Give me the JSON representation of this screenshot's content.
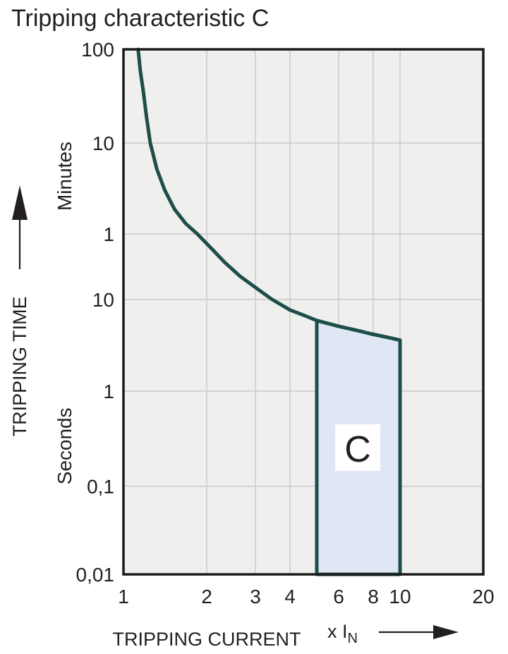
{
  "page": {
    "background": "#ffffff"
  },
  "colors": {
    "curve": "#1e4e49",
    "region_fill": "#dfe7f4",
    "region_border": "#1e4e49",
    "plot_background": "#efefee",
    "gridline": "#c9c9c9",
    "plot_border": "#1a1a1a",
    "text": "#231f20",
    "region_label_box": "#ffffff"
  },
  "chart_data": {
    "type": "line",
    "title": "Tripping characteristic C",
    "x_axis": {
      "title": "TRIPPING CURRENT",
      "unit_label": "x I",
      "unit_sub": "N",
      "scale": "log",
      "range": [
        1,
        20
      ],
      "ticks": [
        {
          "value": 1,
          "label": "1"
        },
        {
          "value": 2,
          "label": "2"
        },
        {
          "value": 3,
          "label": "3"
        },
        {
          "value": 4,
          "label": "4"
        },
        {
          "value": 6,
          "label": "6"
        },
        {
          "value": 8,
          "label": "8"
        },
        {
          "value": 10,
          "label": "10"
        },
        {
          "value": 20,
          "label": "20"
        }
      ]
    },
    "y_axis": {
      "title": "TRIPPING TIME",
      "scale": "log",
      "sections": [
        {
          "label": "Minutes"
        },
        {
          "label": "Seconds"
        }
      ],
      "ticks": [
        {
          "seconds": 6000,
          "label": "100",
          "unit": "minutes"
        },
        {
          "seconds": 600,
          "label": "10",
          "unit": "minutes"
        },
        {
          "seconds": 60,
          "label": "1",
          "unit": "minutes"
        },
        {
          "seconds": 10,
          "label": "10",
          "unit": "seconds"
        },
        {
          "seconds": 1,
          "label": "1",
          "unit": "seconds"
        },
        {
          "seconds": 0.1,
          "label": "0,1",
          "unit": "seconds"
        },
        {
          "seconds": 0.01,
          "label": "0,01",
          "unit": "seconds"
        }
      ]
    },
    "series": [
      {
        "name": "tripping-curve",
        "points": [
          [
            1.13,
            6000
          ],
          [
            1.15,
            3570
          ],
          [
            1.18,
            2120
          ],
          [
            1.21,
            1160
          ],
          [
            1.25,
            600
          ],
          [
            1.32,
            310
          ],
          [
            1.41,
            182
          ],
          [
            1.53,
            112
          ],
          [
            1.68,
            78
          ],
          [
            1.85,
            60
          ],
          [
            2.07,
            41
          ],
          [
            2.32,
            27.7
          ],
          [
            2.64,
            18.9
          ],
          [
            3.0,
            13.9
          ],
          [
            3.45,
            10
          ],
          [
            4.0,
            7.7
          ],
          [
            4.5,
            6.7
          ],
          [
            5.0,
            5.9
          ],
          [
            6.0,
            5.1
          ],
          [
            7.2,
            4.5
          ],
          [
            7.9,
            4.2
          ],
          [
            8.9,
            3.9
          ],
          [
            10.0,
            3.6
          ]
        ]
      }
    ],
    "region": {
      "label": "C",
      "x_min": 5,
      "x_max": 10,
      "t_bottom": 0.01
    }
  }
}
